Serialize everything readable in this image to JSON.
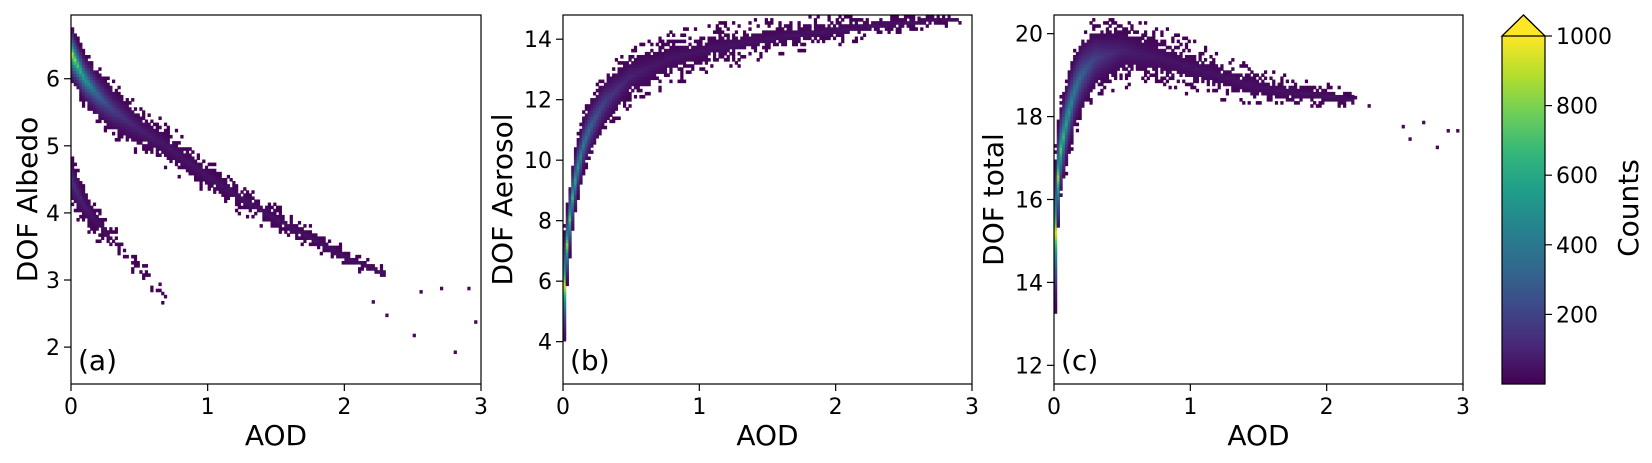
{
  "chart_data": [
    {
      "type": "heatmap",
      "panel_tag": "(a)",
      "xlabel": "AOD",
      "ylabel": "DOF Albedo",
      "xlim": [
        0,
        3
      ],
      "ylim": [
        1.45,
        6.95
      ],
      "xticks": [
        0,
        1,
        2,
        3
      ],
      "yticks": [
        2,
        3,
        4,
        5,
        6
      ],
      "density_bands": [
        {
          "x": [
            0.0,
            0.05,
            0.1,
            0.2,
            0.3,
            0.5,
            0.7,
            1.0,
            1.3,
            1.6,
            2.0,
            2.3
          ],
          "y": [
            6.4,
            6.2,
            6.0,
            5.75,
            5.55,
            5.25,
            5.0,
            4.55,
            4.15,
            3.8,
            3.35,
            3.1
          ],
          "halfwidth": [
            0.5,
            0.45,
            0.45,
            0.45,
            0.45,
            0.4,
            0.35,
            0.3,
            0.25,
            0.2,
            0.15,
            0.1
          ],
          "peak": 1000
        },
        {
          "x": [
            0.0,
            0.1,
            0.2,
            0.3,
            0.45,
            0.6,
            0.7
          ],
          "y": [
            4.5,
            4.1,
            3.85,
            3.6,
            3.3,
            2.95,
            2.7
          ],
          "halfwidth": [
            0.5,
            0.35,
            0.3,
            0.25,
            0.2,
            0.15,
            0.1
          ],
          "peak": 150
        }
      ],
      "sparse_points": [
        [
          2.3,
          2.5
        ],
        [
          2.5,
          2.2
        ],
        [
          2.55,
          2.85
        ],
        [
          2.7,
          2.9
        ],
        [
          2.8,
          1.95
        ],
        [
          2.9,
          2.9
        ],
        [
          2.95,
          2.4
        ],
        [
          2.2,
          2.7
        ],
        [
          2.1,
          3.15
        ]
      ]
    },
    {
      "type": "heatmap",
      "panel_tag": "(b)",
      "xlabel": "AOD",
      "ylabel": "DOF Aerosol",
      "xlim": [
        0,
        3
      ],
      "ylim": [
        2.6,
        14.8
      ],
      "xticks": [
        0,
        1,
        2,
        3
      ],
      "yticks": [
        4,
        6,
        8,
        10,
        12,
        14
      ],
      "density_bands": [
        {
          "x": [
            0.0,
            0.03,
            0.06,
            0.1,
            0.15,
            0.2,
            0.3,
            0.5,
            0.8,
            1.2,
            1.6,
            2.0,
            2.4,
            2.9
          ],
          "y": [
            5.2,
            7.2,
            8.5,
            9.6,
            10.5,
            11.1,
            11.9,
            12.8,
            13.4,
            13.8,
            14.1,
            14.3,
            14.5,
            14.7
          ],
          "halfwidth": [
            2.5,
            1.5,
            1.3,
            1.2,
            1.1,
            1.1,
            1.1,
            1.0,
            0.9,
            0.8,
            0.6,
            0.5,
            0.35,
            0.2
          ],
          "peak": 1000
        }
      ],
      "sparse_points": [
        [
          2.2,
          14.6
        ],
        [
          2.4,
          14.7
        ],
        [
          2.6,
          14.75
        ],
        [
          2.75,
          14.7
        ],
        [
          2.9,
          14.6
        ]
      ]
    },
    {
      "type": "heatmap",
      "panel_tag": "(c)",
      "xlabel": "AOD",
      "ylabel": "DOF total",
      "xlim": [
        0,
        3
      ],
      "ylim": [
        11.55,
        20.45
      ],
      "xticks": [
        0,
        1,
        2,
        3
      ],
      "yticks": [
        12,
        14,
        16,
        18,
        20
      ],
      "density_bands": [
        {
          "x": [
            0.0,
            0.02,
            0.05,
            0.1,
            0.15,
            0.2,
            0.3,
            0.5,
            0.8,
            1.1,
            1.4,
            1.7,
            2.0,
            2.2
          ],
          "y": [
            14.2,
            16.2,
            17.2,
            18.0,
            18.6,
            19.0,
            19.4,
            19.6,
            19.4,
            19.1,
            18.8,
            18.6,
            18.5,
            18.4
          ],
          "halfwidth": [
            2.6,
            1.6,
            1.3,
            1.2,
            1.1,
            1.1,
            1.0,
            0.9,
            0.8,
            0.65,
            0.5,
            0.4,
            0.3,
            0.2
          ],
          "peak": 1000
        }
      ],
      "sparse_points": [
        [
          2.3,
          18.3
        ],
        [
          2.55,
          17.8
        ],
        [
          2.6,
          17.5
        ],
        [
          2.7,
          17.9
        ],
        [
          2.8,
          17.3
        ],
        [
          2.88,
          17.7
        ],
        [
          2.95,
          17.7
        ],
        [
          2.2,
          18.5
        ]
      ]
    }
  ],
  "colorbar": {
    "label": "Counts",
    "min": 0,
    "max": 1000,
    "extend": "max",
    "ticks": [
      200,
      400,
      600,
      800,
      1000
    ],
    "colormap": "viridis",
    "stops": [
      "#440154",
      "#482878",
      "#3e4989",
      "#31688e",
      "#26828e",
      "#1f9e89",
      "#35b779",
      "#6ece58",
      "#b5de2b",
      "#fde725"
    ]
  }
}
